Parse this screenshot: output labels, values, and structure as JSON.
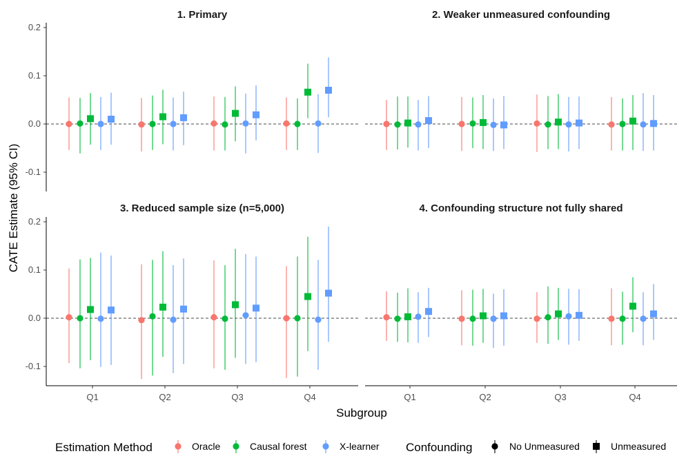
{
  "chart_data": {
    "type": "scatter",
    "subtype": "point-range (estimate with 95% CI), faceted 2x2",
    "ylabel": "CATE Estimate (95% CI)",
    "xlabel": "Subgroup",
    "categories": [
      "Q1",
      "Q2",
      "Q3",
      "Q4"
    ],
    "ylim": [
      -0.14,
      0.21
    ],
    "yticks": [
      -0.1,
      0.0,
      0.1,
      0.2
    ],
    "ytick_labels": [
      "-0.1",
      "0.0",
      "0.1",
      "0.2"
    ],
    "reference_line": 0,
    "legend": {
      "method_title": "Estimation Method",
      "methods": [
        {
          "key": "oracle",
          "label": "Oracle",
          "color": "#F8766D"
        },
        {
          "key": "cf",
          "label": "Causal forest",
          "color": "#00BA38"
        },
        {
          "key": "xl",
          "label": "X-learner",
          "color": "#619CFF"
        }
      ],
      "confounding_title": "Confounding",
      "confounding": [
        {
          "key": "no",
          "label": "No Unmeasured",
          "shape": "circle"
        },
        {
          "key": "un",
          "label": "Unmeasured",
          "shape": "square"
        }
      ]
    },
    "panels": [
      {
        "title": "1. Primary",
        "series": [
          {
            "method": "oracle",
            "confounding": "no",
            "points": [
              [
                0.0,
                -0.054,
                0.055
              ],
              [
                -0.001,
                -0.057,
                0.054
              ],
              [
                0.001,
                -0.055,
                0.057
              ],
              [
                0.001,
                -0.054,
                0.055
              ]
            ]
          },
          {
            "method": "cf",
            "confounding": "no",
            "points": [
              [
                0.001,
                -0.061,
                0.054
              ],
              [
                0.0,
                -0.054,
                0.059
              ],
              [
                -0.001,
                -0.055,
                0.056
              ],
              [
                0.0,
                -0.054,
                0.053
              ]
            ]
          },
          {
            "method": "cf",
            "confounding": "un",
            "points": [
              [
                0.011,
                -0.043,
                0.064
              ],
              [
                0.015,
                -0.042,
                0.071
              ],
              [
                0.022,
                -0.036,
                0.078
              ],
              [
                0.066,
                0.012,
                0.125
              ]
            ]
          },
          {
            "method": "xl",
            "confounding": "no",
            "points": [
              [
                0.0,
                -0.054,
                0.056
              ],
              [
                0.0,
                -0.055,
                0.055
              ],
              [
                0.001,
                -0.061,
                0.063
              ],
              [
                0.001,
                -0.06,
                0.062
              ]
            ]
          },
          {
            "method": "xl",
            "confounding": "un",
            "points": [
              [
                0.01,
                -0.043,
                0.065
              ],
              [
                0.013,
                -0.044,
                0.067
              ],
              [
                0.019,
                -0.034,
                0.08
              ],
              [
                0.07,
                0.014,
                0.138
              ]
            ]
          }
        ]
      },
      {
        "title": "2. Weaker unmeasured confounding",
        "series": [
          {
            "method": "oracle",
            "confounding": "no",
            "points": [
              [
                0.0,
                -0.054,
                0.05
              ],
              [
                0.0,
                -0.056,
                0.056
              ],
              [
                0.001,
                -0.058,
                0.061
              ],
              [
                -0.001,
                -0.055,
                0.056
              ]
            ]
          },
          {
            "method": "cf",
            "confounding": "no",
            "points": [
              [
                -0.001,
                -0.053,
                0.057
              ],
              [
                0.001,
                -0.05,
                0.055
              ],
              [
                -0.001,
                -0.052,
                0.058
              ],
              [
                0.0,
                -0.055,
                0.053
              ]
            ]
          },
          {
            "method": "cf",
            "confounding": "un",
            "points": [
              [
                0.002,
                -0.049,
                0.057
              ],
              [
                0.003,
                -0.052,
                0.06
              ],
              [
                0.004,
                -0.052,
                0.062
              ],
              [
                0.006,
                -0.054,
                0.06
              ]
            ]
          },
          {
            "method": "xl",
            "confounding": "no",
            "points": [
              [
                -0.001,
                -0.055,
                0.05
              ],
              [
                -0.002,
                -0.056,
                0.053
              ],
              [
                -0.001,
                -0.057,
                0.056
              ],
              [
                -0.001,
                -0.056,
                0.064
              ]
            ]
          },
          {
            "method": "xl",
            "confounding": "un",
            "points": [
              [
                0.007,
                -0.05,
                0.058
              ],
              [
                -0.002,
                -0.052,
                0.058
              ],
              [
                0.002,
                -0.052,
                0.057
              ],
              [
                0.001,
                -0.055,
                0.06
              ]
            ]
          }
        ]
      },
      {
        "title": "3. Reduced sample size (n=5,000)",
        "series": [
          {
            "method": "oracle",
            "confounding": "no",
            "points": [
              [
                0.002,
                -0.093,
                0.103
              ],
              [
                -0.004,
                -0.126,
                0.112
              ],
              [
                0.002,
                -0.104,
                0.12
              ],
              [
                0.0,
                -0.124,
                0.108
              ]
            ]
          },
          {
            "method": "cf",
            "confounding": "no",
            "points": [
              [
                0.0,
                -0.104,
                0.122
              ],
              [
                0.004,
                -0.119,
                0.121
              ],
              [
                -0.001,
                -0.107,
                0.11
              ],
              [
                0.0,
                -0.121,
                0.128
              ]
            ]
          },
          {
            "method": "cf",
            "confounding": "un",
            "points": [
              [
                0.018,
                -0.087,
                0.125
              ],
              [
                0.023,
                -0.08,
                0.139
              ],
              [
                0.028,
                -0.082,
                0.144
              ],
              [
                0.045,
                -0.068,
                0.169
              ]
            ]
          },
          {
            "method": "xl",
            "confounding": "no",
            "points": [
              [
                -0.001,
                -0.101,
                0.136
              ],
              [
                -0.003,
                -0.114,
                0.11
              ],
              [
                0.006,
                -0.095,
                0.133
              ],
              [
                -0.003,
                -0.107,
                0.121
              ]
            ]
          },
          {
            "method": "xl",
            "confounding": "un",
            "points": [
              [
                0.017,
                -0.097,
                0.13
              ],
              [
                0.019,
                -0.095,
                0.124
              ],
              [
                0.021,
                -0.091,
                0.128
              ],
              [
                0.052,
                -0.049,
                0.19
              ]
            ]
          }
        ]
      },
      {
        "title": "4. Confounding structure not fully shared",
        "series": [
          {
            "method": "oracle",
            "confounding": "no",
            "points": [
              [
                0.002,
                -0.047,
                0.056
              ],
              [
                -0.001,
                -0.056,
                0.058
              ],
              [
                -0.001,
                -0.051,
                0.054
              ],
              [
                -0.001,
                -0.056,
                0.062
              ]
            ]
          },
          {
            "method": "cf",
            "confounding": "no",
            "points": [
              [
                -0.001,
                -0.049,
                0.053
              ],
              [
                -0.001,
                -0.057,
                0.059
              ],
              [
                0.002,
                -0.053,
                0.066
              ],
              [
                -0.001,
                -0.055,
                0.055
              ]
            ]
          },
          {
            "method": "cf",
            "confounding": "un",
            "points": [
              [
                0.003,
                -0.05,
                0.062
              ],
              [
                0.005,
                -0.051,
                0.061
              ],
              [
                0.009,
                -0.045,
                0.063
              ],
              [
                0.025,
                -0.029,
                0.085
              ]
            ]
          },
          {
            "method": "xl",
            "confounding": "no",
            "points": [
              [
                0.003,
                -0.051,
                0.054
              ],
              [
                -0.001,
                -0.062,
                0.051
              ],
              [
                0.004,
                -0.055,
                0.061
              ],
              [
                -0.001,
                -0.056,
                0.054
              ]
            ]
          },
          {
            "method": "xl",
            "confounding": "un",
            "points": [
              [
                0.014,
                -0.039,
                0.063
              ],
              [
                0.005,
                -0.057,
                0.06
              ],
              [
                0.006,
                -0.047,
                0.06
              ],
              [
                0.009,
                -0.045,
                0.071
              ]
            ]
          }
        ]
      }
    ]
  }
}
